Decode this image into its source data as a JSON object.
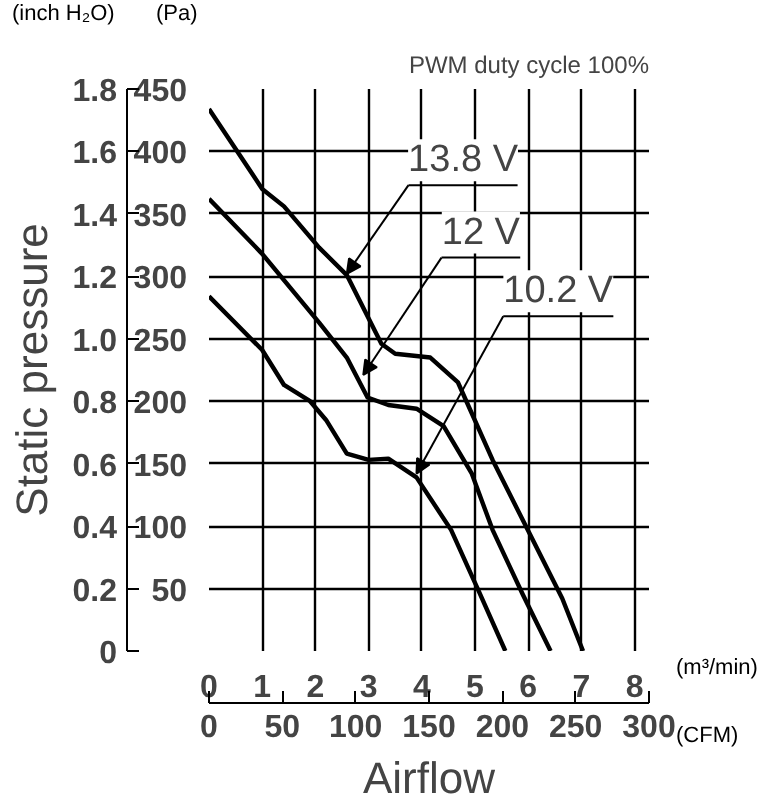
{
  "chart_data": {
    "type": "line",
    "title": "PWM duty cycle 100%",
    "ylabel": "Static pressure",
    "xlabel": "Airflow",
    "annotations": [
      "(inch H₂O)",
      "(Pa)",
      "(m³/min)",
      "(CFM)"
    ],
    "series": [
      {
        "name": "13.8 V",
        "color": "#000000",
        "axis": "y2",
        "x": [
          0,
          1.0,
          1.41,
          2.07,
          2.59,
          3.24,
          3.5,
          4.16,
          4.68,
          5.33,
          5.99,
          6.64,
          7.03
        ],
        "values": [
          434,
          370,
          356,
          323,
          301,
          246,
          238,
          235,
          215,
          153,
          97,
          42,
          0
        ]
      },
      {
        "name": "12 V",
        "color": "#000000",
        "axis": "y2",
        "x": [
          0,
          1.0,
          2.07,
          2.59,
          2.98,
          3.37,
          3.9,
          4.41,
          4.94,
          5.33,
          5.9,
          6.42
        ],
        "values": [
          362,
          318,
          263,
          235,
          203,
          197,
          194,
          180,
          142,
          97,
          45,
          0
        ]
      },
      {
        "name": "10.2 V",
        "color": "#000000",
        "axis": "y2",
        "x": [
          0,
          1.0,
          1.41,
          1.9,
          2.2,
          2.59,
          3.0,
          3.37,
          3.9,
          4.55,
          5.07,
          5.57
        ],
        "values": [
          284,
          241,
          213,
          200,
          185,
          158,
          153,
          154,
          139,
          97,
          48,
          0
        ]
      }
    ],
    "xlim": [
      0,
      8.27
    ],
    "xticks": [
      0,
      1,
      2,
      3,
      4,
      5,
      6,
      7,
      8
    ],
    "x2lim": [
      0,
      300
    ],
    "x2ticks": [
      0,
      50,
      100,
      150,
      200,
      250,
      300
    ],
    "ylim": [
      0,
      1.8
    ],
    "yticks": [
      0,
      0.2,
      0.4,
      0.6,
      0.8,
      {
        "value": 1.0,
        "label": "1.0"
      },
      1.2,
      1.4,
      1.6,
      1.8
    ],
    "y2lim": [
      0,
      450
    ],
    "y2ticks": [
      50,
      100,
      150,
      200,
      250,
      300,
      350,
      400,
      450
    ],
    "grid": true,
    "legend": "top right",
    "marker": "none",
    "line_style": "solid"
  }
}
